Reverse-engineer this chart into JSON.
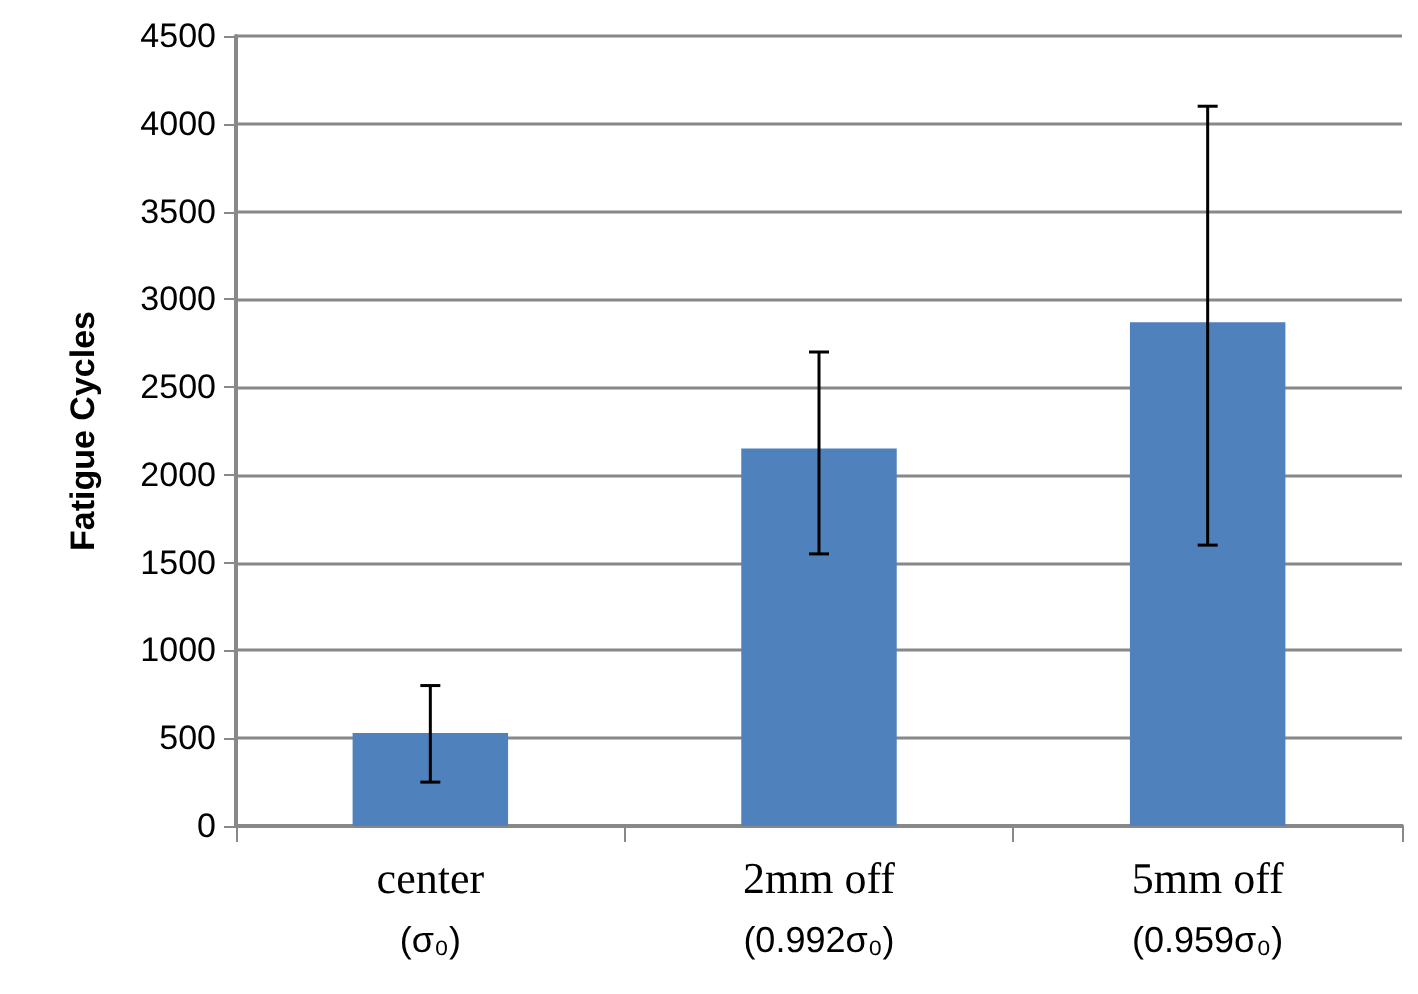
{
  "chart_data": {
    "type": "bar",
    "ylabel": "Fatigue Cycles",
    "categories": [
      "center\n(σ₀)",
      "2mm off\n(0.992σ₀)",
      "5mm off\n(0.959σ₀)"
    ],
    "values": [
      530,
      2150,
      2870
    ],
    "errors": [
      [
        250,
        800
      ],
      [
        1550,
        2700
      ],
      [
        1600,
        4100
      ]
    ],
    "color": "#4f81bd",
    "ylim": [
      0,
      4500
    ],
    "yticks": [
      0,
      500,
      1000,
      1500,
      2000,
      2500,
      3000,
      3500,
      4000,
      4500
    ],
    "grid": "y"
  }
}
